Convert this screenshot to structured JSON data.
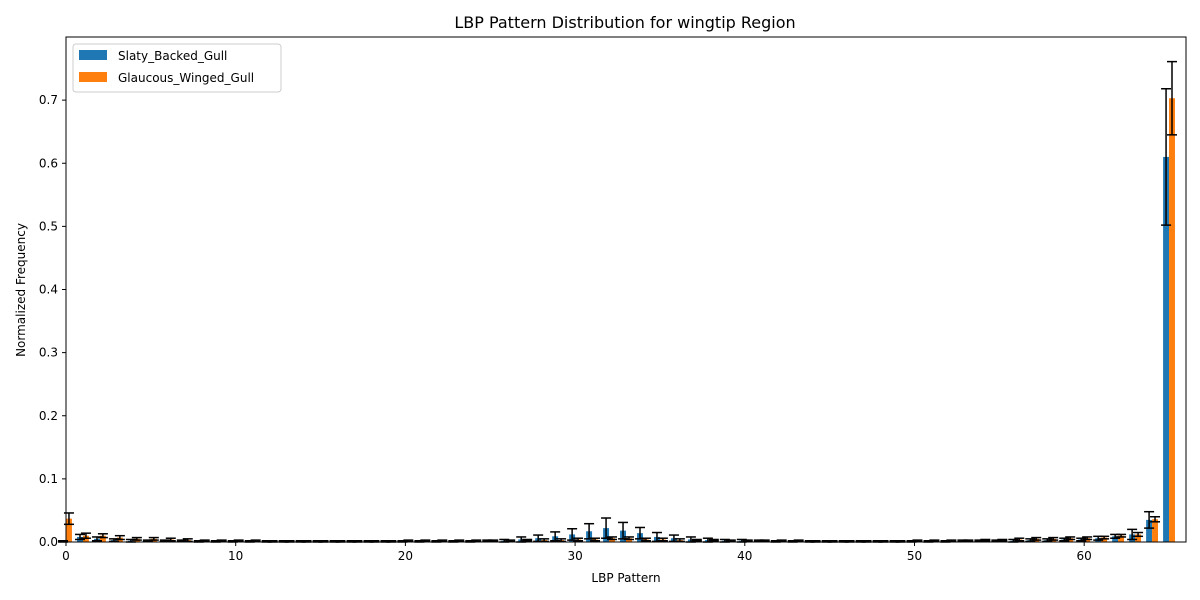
{
  "chart_data": {
    "type": "bar",
    "title": "LBP Pattern Distribution for wingtip Region",
    "xlabel": "LBP Pattern",
    "ylabel": "Normalized Frequency",
    "xlim": [
      0,
      66
    ],
    "ylim": [
      0,
      0.8
    ],
    "x_ticks": [
      0,
      10,
      20,
      30,
      40,
      50,
      60
    ],
    "y_ticks": [
      0.0,
      0.1,
      0.2,
      0.3,
      0.4,
      0.5,
      0.6,
      0.7
    ],
    "legend_position": "top-left",
    "grid": false,
    "colors": {
      "Slaty_Backed_Gull": "#1f77b4",
      "Glaucous_Winged_Gull": "#ff7f0e"
    },
    "x": [
      0,
      1,
      2,
      3,
      4,
      5,
      6,
      7,
      8,
      9,
      10,
      11,
      12,
      13,
      14,
      15,
      16,
      17,
      18,
      19,
      20,
      21,
      22,
      23,
      24,
      25,
      26,
      27,
      28,
      29,
      30,
      31,
      32,
      33,
      34,
      35,
      36,
      37,
      38,
      39,
      40,
      41,
      42,
      43,
      44,
      45,
      46,
      47,
      48,
      49,
      50,
      51,
      52,
      53,
      54,
      55,
      56,
      57,
      58,
      59,
      60,
      61,
      62,
      63,
      64,
      65
    ],
    "series": [
      {
        "name": "Slaty_Backed_Gull",
        "values": [
          0.001,
          0.008,
          0.005,
          0.003,
          0.002,
          0.002,
          0.002,
          0.002,
          0.001,
          0.001,
          0.001,
          0.001,
          0.001,
          0.001,
          0.001,
          0.001,
          0.001,
          0.001,
          0.001,
          0.001,
          0.001,
          0.001,
          0.001,
          0.001,
          0.001,
          0.002,
          0.002,
          0.004,
          0.006,
          0.009,
          0.012,
          0.017,
          0.022,
          0.018,
          0.014,
          0.008,
          0.006,
          0.004,
          0.003,
          0.002,
          0.002,
          0.002,
          0.001,
          0.001,
          0.001,
          0.001,
          0.001,
          0.001,
          0.001,
          0.001,
          0.001,
          0.001,
          0.001,
          0.002,
          0.002,
          0.002,
          0.002,
          0.003,
          0.003,
          0.004,
          0.004,
          0.006,
          0.009,
          0.012,
          0.035,
          0.61
        ],
        "errors": [
          0.001,
          0.004,
          0.003,
          0.002,
          0.002,
          0.001,
          0.001,
          0.001,
          0.001,
          0.001,
          0.001,
          0.001,
          0.001,
          0.001,
          0.001,
          0.001,
          0.001,
          0.001,
          0.001,
          0.001,
          0.001,
          0.001,
          0.001,
          0.001,
          0.001,
          0.001,
          0.002,
          0.004,
          0.005,
          0.007,
          0.009,
          0.012,
          0.016,
          0.013,
          0.009,
          0.007,
          0.005,
          0.004,
          0.003,
          0.002,
          0.002,
          0.001,
          0.001,
          0.001,
          0.001,
          0.001,
          0.001,
          0.001,
          0.001,
          0.001,
          0.001,
          0.001,
          0.001,
          0.001,
          0.001,
          0.001,
          0.002,
          0.002,
          0.002,
          0.002,
          0.002,
          0.003,
          0.003,
          0.008,
          0.013,
          0.108
        ]
      },
      {
        "name": "Glaucous_Winged_Gull",
        "values": [
          0.037,
          0.01,
          0.01,
          0.007,
          0.005,
          0.005,
          0.004,
          0.003,
          0.002,
          0.002,
          0.002,
          0.002,
          0.001,
          0.001,
          0.001,
          0.001,
          0.001,
          0.001,
          0.001,
          0.001,
          0.002,
          0.002,
          0.002,
          0.002,
          0.002,
          0.002,
          0.002,
          0.003,
          0.003,
          0.003,
          0.004,
          0.004,
          0.006,
          0.006,
          0.004,
          0.004,
          0.003,
          0.003,
          0.003,
          0.002,
          0.002,
          0.002,
          0.002,
          0.002,
          0.001,
          0.001,
          0.001,
          0.001,
          0.001,
          0.001,
          0.002,
          0.002,
          0.002,
          0.002,
          0.003,
          0.003,
          0.004,
          0.005,
          0.005,
          0.006,
          0.006,
          0.007,
          0.01,
          0.012,
          0.036,
          0.703
        ],
        "errors": [
          0.009,
          0.004,
          0.003,
          0.003,
          0.002,
          0.002,
          0.002,
          0.002,
          0.001,
          0.001,
          0.001,
          0.001,
          0.001,
          0.001,
          0.001,
          0.001,
          0.001,
          0.001,
          0.001,
          0.001,
          0.001,
          0.001,
          0.001,
          0.001,
          0.001,
          0.001,
          0.001,
          0.001,
          0.002,
          0.002,
          0.002,
          0.002,
          0.002,
          0.002,
          0.002,
          0.002,
          0.002,
          0.001,
          0.001,
          0.001,
          0.001,
          0.001,
          0.001,
          0.001,
          0.001,
          0.001,
          0.001,
          0.001,
          0.001,
          0.001,
          0.001,
          0.001,
          0.001,
          0.001,
          0.001,
          0.001,
          0.002,
          0.002,
          0.002,
          0.002,
          0.002,
          0.002,
          0.002,
          0.003,
          0.004,
          0.058
        ]
      }
    ]
  }
}
